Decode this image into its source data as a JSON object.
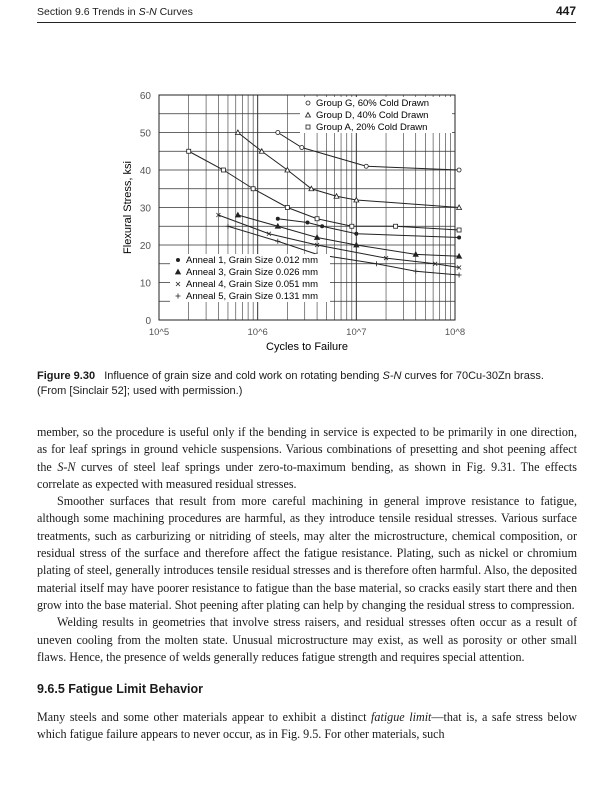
{
  "header": {
    "section": "Section 9.6   Trends in ",
    "section_italic": "S-N",
    "section_tail": " Curves",
    "page_number": "447"
  },
  "figure": {
    "label": "Figure 9.30",
    "caption_pre": "Influence of grain size and cold work on rotating bending ",
    "caption_italic": "S-N",
    "caption_post": " curves for 70Cu-30Zn brass. (From [Sinclair 52]; used with permission.)"
  },
  "chart_data": {
    "type": "line",
    "xlabel": "Cycles to Failure",
    "ylabel": "Flexural Stress, ksi",
    "xscale": "log",
    "xlim": [
      100000,
      100000000
    ],
    "ylim": [
      0,
      60
    ],
    "x_tick_labels": [
      "10^5",
      "10^6",
      "10^7",
      "10^8"
    ],
    "y_tick_labels": [
      "0",
      "10",
      "20",
      "30",
      "40",
      "50",
      "60"
    ],
    "grid": true,
    "legend_top": "top-right",
    "legend_bottom": "bottom-left",
    "series": [
      {
        "name": "Group G, 60% Cold Drawn",
        "marker": "circle-open",
        "legend": "top",
        "points": [
          [
            1600000.0,
            50
          ],
          [
            2800000.0,
            46
          ],
          [
            12600000.0,
            41
          ],
          [
            110000000.0,
            40
          ]
        ]
      },
      {
        "name": "Group D, 40% Cold Drawn",
        "marker": "triangle-open",
        "legend": "top",
        "points": [
          [
            630000.0,
            50
          ],
          [
            1100000.0,
            45
          ],
          [
            2000000.0,
            40
          ],
          [
            3500000.0,
            35
          ],
          [
            6300000.0,
            33
          ],
          [
            10000000.0,
            32
          ],
          [
            110000000.0,
            30
          ]
        ]
      },
      {
        "name": "Group A, 20% Cold Drawn",
        "marker": "square-open",
        "legend": "top",
        "points": [
          [
            200000.0,
            45
          ],
          [
            450000.0,
            40
          ],
          [
            900000.0,
            35
          ],
          [
            2000000.0,
            30
          ],
          [
            4000000.0,
            27
          ],
          [
            9000000.0,
            25
          ],
          [
            25000000.0,
            25
          ],
          [
            110000000.0,
            24
          ]
        ]
      },
      {
        "name": "Anneal 1, Grain Size 0.012 mm",
        "marker": "dot",
        "legend": "bottom",
        "points": [
          [
            1600000.0,
            27
          ],
          [
            3200000.0,
            26
          ],
          [
            4500000.0,
            25
          ],
          [
            10000000.0,
            23
          ],
          [
            110000000.0,
            22
          ]
        ]
      },
      {
        "name": "Anneal 3, Grain Size 0.026 mm",
        "marker": "triangle-filled",
        "legend": "bottom",
        "points": [
          [
            630000.0,
            28
          ],
          [
            1600000.0,
            25
          ],
          [
            4000000.0,
            22
          ],
          [
            10000000.0,
            20
          ],
          [
            40000000.0,
            17.5
          ],
          [
            110000000.0,
            17
          ]
        ]
      },
      {
        "name": "Anneal 4, Grain Size 0.051 mm",
        "marker": "x",
        "legend": "bottom",
        "points": [
          [
            400000.0,
            28
          ],
          [
            1300000.0,
            23
          ],
          [
            4000000.0,
            20
          ],
          [
            20000000.0,
            16.5
          ],
          [
            63000000.0,
            15
          ],
          [
            110000000.0,
            14
          ]
        ]
      },
      {
        "name": "Anneal 5, Grain Size 0.131 mm",
        "marker": "plus",
        "legend": "bottom",
        "points": [
          [
            500000.0,
            25
          ],
          [
            1600000.0,
            21
          ],
          [
            4000000.0,
            17.5
          ],
          [
            16000000.0,
            15
          ],
          [
            40000000.0,
            13
          ],
          [
            110000000.0,
            12
          ]
        ]
      }
    ]
  },
  "body": {
    "p1_a": "member, so the procedure is useful only if the bending in service is expected to be primarily in one direction, as for leaf springs in ground vehicle suspensions. Various combinations of presetting and shot peening affect the ",
    "p1_i": "S-N",
    "p1_b": " curves of steel leaf springs under zero-to-maximum bending, as shown in Fig. 9.31. The effects correlate as expected with measured residual stresses.",
    "p2": "Smoother surfaces that result from more careful machining in general improve resistance to fatigue, although some machining procedures are harmful, as they introduce tensile residual stresses. Various surface treatments, such as carburizing or nitriding of steels, may alter the microstructure, chemical composition, or residual stress of the surface and therefore affect the fatigue resistance. Plating, such as nickel or chromium plating of steel, generally introduces tensile residual stresses and is therefore often harmful. Also, the deposited material itself may have poorer resistance to fatigue than the base material, so cracks easily start there and then grow into the base material. Shot peening after plating can help by changing the residual stress to compression.",
    "p3": "Welding results in geometries that involve stress raisers, and residual stresses often occur as a result of uneven cooling from the molten state. Unusual microstructure may exist, as well as porosity or other small flaws. Hence, the presence of welds generally reduces fatigue strength and requires special attention.",
    "heading": "9.6.5 Fatigue Limit Behavior",
    "p4_a": "Many steels and some other materials appear to exhibit a distinct ",
    "p4_i": "fatigue limit",
    "p4_b": "—that is, a safe stress below which fatigue failure appears to never occur, as in Fig. 9.5. For other materials, such"
  }
}
